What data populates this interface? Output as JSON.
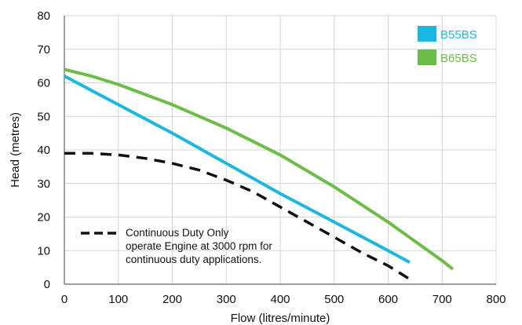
{
  "chart_data": {
    "type": "line",
    "title": "",
    "xlabel": "Flow (litres/minute)",
    "ylabel": "Head (metres)",
    "xlim": [
      0,
      800
    ],
    "ylim": [
      0,
      80
    ],
    "x_ticks": [
      "0",
      "100",
      "200",
      "300",
      "400",
      "500",
      "600",
      "700",
      "800"
    ],
    "y_ticks": [
      "0",
      "10",
      "20",
      "30",
      "40",
      "50",
      "60",
      "70",
      "80"
    ],
    "grid": true,
    "legend_position": "top-right",
    "series": [
      {
        "name": "B55BS",
        "color": "#1ab8e0",
        "style": "solid",
        "points": [
          [
            0,
            62
          ],
          [
            100,
            53.5
          ],
          [
            200,
            45
          ],
          [
            300,
            36
          ],
          [
            400,
            27
          ],
          [
            500,
            18.5
          ],
          [
            600,
            10
          ],
          [
            640,
            6.5
          ]
        ]
      },
      {
        "name": "B65BS",
        "color": "#6cbd45",
        "style": "solid",
        "points": [
          [
            0,
            64
          ],
          [
            50,
            62
          ],
          [
            100,
            59.5
          ],
          [
            200,
            53.5
          ],
          [
            300,
            46.5
          ],
          [
            400,
            38.5
          ],
          [
            500,
            29
          ],
          [
            600,
            18.5
          ],
          [
            700,
            7
          ],
          [
            720,
            4.5
          ]
        ]
      },
      {
        "name": "Continuous Duty Only",
        "color": "#111111",
        "style": "dashed",
        "in_legend": false,
        "points": [
          [
            0,
            39
          ],
          [
            50,
            39
          ],
          [
            100,
            38.5
          ],
          [
            150,
            37.5
          ],
          [
            200,
            36
          ],
          [
            250,
            34
          ],
          [
            300,
            31
          ],
          [
            350,
            27.5
          ],
          [
            400,
            23
          ],
          [
            450,
            18.5
          ],
          [
            500,
            14
          ],
          [
            550,
            9.5
          ],
          [
            600,
            5.5
          ],
          [
            640,
            1.5
          ]
        ]
      }
    ],
    "annotation": {
      "lines": [
        "Continuous Duty Only",
        "operate Engine at 3000 rpm for",
        "continuous duty applications."
      ]
    }
  }
}
